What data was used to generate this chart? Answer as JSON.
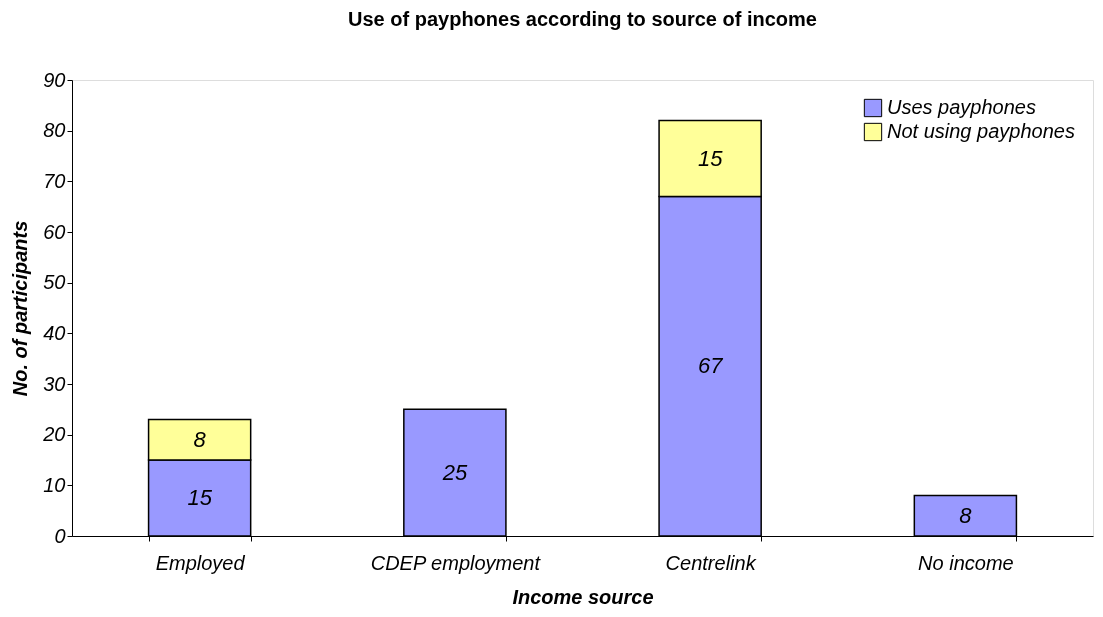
{
  "chart_data": {
    "type": "bar",
    "title": "Use of payphones according to source of income",
    "xlabel": "Income source",
    "ylabel": "No. of participants",
    "categories": [
      "Employed",
      "CDEP employment",
      "Centrelink",
      "No income"
    ],
    "series": [
      {
        "name": "Uses payphones",
        "color": "#9999ff",
        "values": [
          15,
          25,
          67,
          8
        ]
      },
      {
        "name": "Not using payphones",
        "color": "#ffff99",
        "values": [
          8,
          null,
          15,
          null
        ]
      }
    ],
    "stacked": true,
    "ylim": [
      0,
      90
    ],
    "yticks": [
      0,
      10,
      20,
      30,
      40,
      50,
      60,
      70,
      80,
      90
    ],
    "grid": false,
    "legend": "top right",
    "data_labels": true
  }
}
